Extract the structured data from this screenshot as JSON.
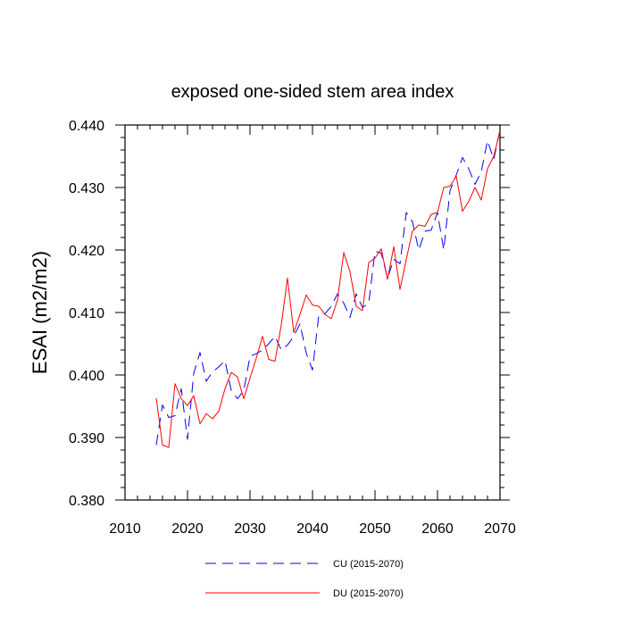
{
  "chart_data": {
    "type": "line",
    "title": "exposed one-sided stem area index",
    "xlabel": "",
    "ylabel": "ESAI  (m2/m2)",
    "xlim": [
      2010,
      2070
    ],
    "ylim": [
      0.38,
      0.44
    ],
    "xticks": [
      2010,
      2020,
      2030,
      2040,
      2050,
      2060,
      2070
    ],
    "xtick_labels": [
      "2010",
      "2020",
      "2030",
      "2040",
      "2050",
      "2060",
      "2070"
    ],
    "yticks": [
      0.38,
      0.39,
      0.4,
      0.41,
      0.42,
      0.43,
      0.44
    ],
    "ytick_labels": [
      "0.380",
      "0.390",
      "0.400",
      "0.410",
      "0.420",
      "0.430",
      "0.440"
    ],
    "grid": false,
    "legend_position": "bottom",
    "x": [
      2015,
      2016,
      2017,
      2018,
      2019,
      2020,
      2021,
      2022,
      2023,
      2024,
      2025,
      2026,
      2027,
      2028,
      2029,
      2030,
      2031,
      2032,
      2033,
      2034,
      2035,
      2036,
      2037,
      2038,
      2039,
      2040,
      2041,
      2042,
      2043,
      2044,
      2045,
      2046,
      2047,
      2048,
      2049,
      2050,
      2051,
      2052,
      2053,
      2054,
      2055,
      2056,
      2057,
      2058,
      2059,
      2060,
      2061,
      2062,
      2063,
      2064,
      2065,
      2066,
      2067,
      2068,
      2069,
      2070
    ],
    "series": [
      {
        "name": "CU (2015-2070)",
        "style": "dashed",
        "color": "#0000ff",
        "values": [
          0.3888,
          0.3952,
          0.3932,
          0.3935,
          0.3978,
          0.3897,
          0.4003,
          0.4036,
          0.399,
          0.4005,
          0.4013,
          0.4023,
          0.3975,
          0.3962,
          0.3975,
          0.403,
          0.4034,
          0.404,
          0.405,
          0.4062,
          0.404,
          0.4048,
          0.4062,
          0.4082,
          0.4035,
          0.4008,
          0.4095,
          0.4098,
          0.411,
          0.413,
          0.4115,
          0.4092,
          0.413,
          0.4108,
          0.4115,
          0.4198,
          0.4195,
          0.4155,
          0.4185,
          0.4178,
          0.426,
          0.4245,
          0.42,
          0.423,
          0.4232,
          0.426,
          0.42,
          0.4295,
          0.432,
          0.4348,
          0.433,
          0.4305,
          0.4325,
          0.4375,
          0.4345,
          0.4392
        ]
      },
      {
        "name": "DU (2015-2070)",
        "style": "solid",
        "color": "#ff0000",
        "values": [
          0.3963,
          0.3888,
          0.3884,
          0.3986,
          0.3962,
          0.3951,
          0.3967,
          0.3922,
          0.3938,
          0.393,
          0.3942,
          0.3978,
          0.4004,
          0.3997,
          0.3962,
          0.3995,
          0.4027,
          0.4062,
          0.4025,
          0.4022,
          0.408,
          0.4155,
          0.4068,
          0.4097,
          0.4128,
          0.4112,
          0.411,
          0.4097,
          0.409,
          0.412,
          0.4196,
          0.4165,
          0.411,
          0.4103,
          0.418,
          0.4187,
          0.4202,
          0.4153,
          0.4205,
          0.4137,
          0.4185,
          0.423,
          0.424,
          0.4238,
          0.4257,
          0.426,
          0.43,
          0.4302,
          0.4318,
          0.4262,
          0.4278,
          0.43,
          0.428,
          0.433,
          0.435,
          0.439
        ]
      }
    ]
  }
}
